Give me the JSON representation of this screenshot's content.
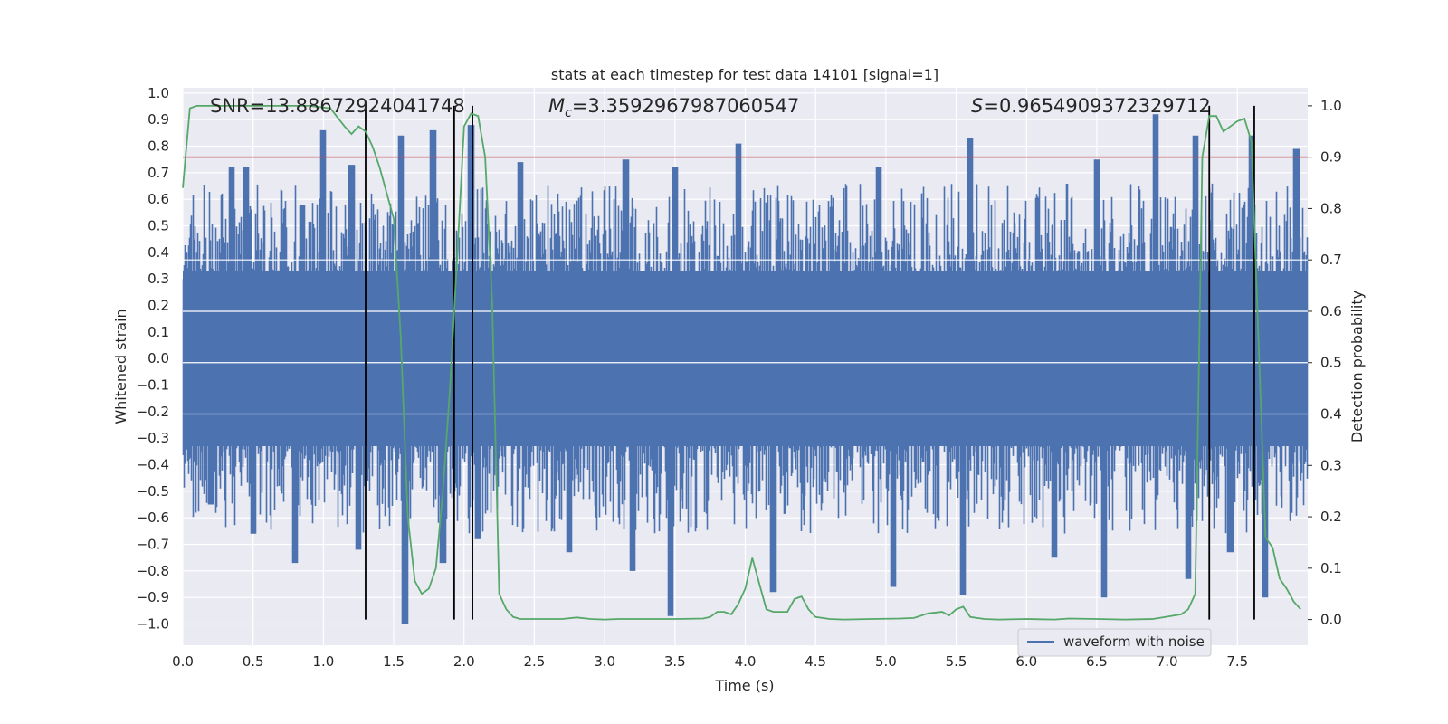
{
  "chart_data": {
    "type": "line",
    "title": "stats at each timestep for test data 14101 [signal=1]",
    "xlabel": "Time (s)",
    "ylabel_left": "Whitened strain",
    "ylabel_right": "Detection probability",
    "xlim": [
      0,
      8
    ],
    "ylim_left": [
      -1.08,
      1.02
    ],
    "ylim_right": [
      -0.05,
      1.035
    ],
    "x_ticks": [
      "0.0",
      "0.5",
      "1.0",
      "1.5",
      "2.0",
      "2.5",
      "3.0",
      "3.5",
      "4.0",
      "4.5",
      "5.0",
      "5.5",
      "6.0",
      "6.5",
      "7.0",
      "7.5"
    ],
    "y_ticks_left": [
      "1.0",
      "0.9",
      "0.8",
      "0.7",
      "0.6",
      "0.5",
      "0.4",
      "0.3",
      "0.2",
      "0.1",
      "0.0",
      "−0.1",
      "−0.2",
      "−0.3",
      "−0.4",
      "−0.5",
      "−0.6",
      "−0.7",
      "−0.8",
      "−0.9",
      "−1.0"
    ],
    "y_ticks_right": [
      "1.0",
      "0.9",
      "0.8",
      "0.7",
      "0.6",
      "0.5",
      "0.4",
      "0.3",
      "0.2",
      "0.1",
      "0.0"
    ],
    "grid": true,
    "legend": {
      "position": "lower-right",
      "entries": [
        "waveform with noise"
      ]
    },
    "annotations": {
      "snr": "SNR=13.88672924041748",
      "mc_symbol": "M",
      "mc_sub": "c",
      "mc_value": "=3.3592967987060547",
      "s_symbol": "S",
      "s_value": "=0.9654909372329712"
    },
    "series": [
      {
        "name": "waveform with noise",
        "axis": "left",
        "color": "#4c72b0",
        "envelope": {
          "upper_typical": 0.45,
          "lower_typical": -0.45
        },
        "peaks": [
          [
            0.35,
            0.72
          ],
          [
            0.45,
            0.72
          ],
          [
            0.85,
            0.58
          ],
          [
            1.0,
            0.86
          ],
          [
            1.2,
            0.73
          ],
          [
            1.55,
            0.84
          ],
          [
            1.78,
            0.86
          ],
          [
            2.05,
            0.88
          ],
          [
            2.4,
            0.74
          ],
          [
            3.15,
            0.75
          ],
          [
            3.5,
            0.72
          ],
          [
            3.95,
            0.81
          ],
          [
            4.95,
            0.72
          ],
          [
            5.6,
            0.83
          ],
          [
            6.5,
            0.75
          ],
          [
            6.92,
            0.92
          ],
          [
            7.2,
            0.84
          ],
          [
            7.6,
            0.84
          ],
          [
            7.92,
            0.79
          ]
        ],
        "troughs": [
          [
            0.2,
            -0.55
          ],
          [
            0.5,
            -0.66
          ],
          [
            0.8,
            -0.77
          ],
          [
            1.25,
            -0.72
          ],
          [
            1.58,
            -1.0
          ],
          [
            1.85,
            -0.77
          ],
          [
            2.1,
            -0.68
          ],
          [
            2.75,
            -0.73
          ],
          [
            3.2,
            -0.8
          ],
          [
            3.47,
            -0.97
          ],
          [
            4.2,
            -0.88
          ],
          [
            5.05,
            -0.86
          ],
          [
            5.55,
            -0.89
          ],
          [
            6.2,
            -0.75
          ],
          [
            6.55,
            -0.9
          ],
          [
            7.15,
            -0.83
          ],
          [
            7.45,
            -0.73
          ],
          [
            7.7,
            -0.9
          ]
        ]
      },
      {
        "name": "detection probability",
        "axis": "right",
        "color": "#55a868",
        "x": [
          0.0,
          0.05,
          0.1,
          0.2,
          0.3,
          0.5,
          0.7,
          0.9,
          1.05,
          1.15,
          1.2,
          1.25,
          1.3,
          1.35,
          1.4,
          1.5,
          1.55,
          1.6,
          1.65,
          1.7,
          1.75,
          1.8,
          1.85,
          1.9,
          1.95,
          2.0,
          2.05,
          2.1,
          2.15,
          2.2,
          2.25,
          2.3,
          2.35,
          2.4,
          2.5,
          2.7,
          2.8,
          2.9,
          3.0,
          3.1,
          3.3,
          3.5,
          3.7,
          3.75,
          3.8,
          3.85,
          3.9,
          3.95,
          4.0,
          4.05,
          4.1,
          4.15,
          4.2,
          4.3,
          4.35,
          4.4,
          4.45,
          4.5,
          4.6,
          4.7,
          4.9,
          5.1,
          5.2,
          5.3,
          5.4,
          5.45,
          5.5,
          5.55,
          5.6,
          5.7,
          5.8,
          6.0,
          6.2,
          6.3,
          6.5,
          6.7,
          6.9,
          7.1,
          7.15,
          7.2,
          7.25,
          7.3,
          7.35,
          7.4,
          7.5,
          7.55,
          7.6,
          7.7,
          7.75,
          7.8,
          7.85,
          7.9,
          7.95
        ],
        "y": [
          0.84,
          0.995,
          1.0,
          1.0,
          1.0,
          1.0,
          1.0,
          1.0,
          0.995,
          0.96,
          0.945,
          0.96,
          0.95,
          0.92,
          0.88,
          0.78,
          0.55,
          0.2,
          0.075,
          0.05,
          0.06,
          0.1,
          0.25,
          0.45,
          0.7,
          0.96,
          0.985,
          0.98,
          0.9,
          0.62,
          0.05,
          0.02,
          0.005,
          0.001,
          0.001,
          0.001,
          0.004,
          0.001,
          0.0,
          0.001,
          0.001,
          0.001,
          0.002,
          0.005,
          0.015,
          0.015,
          0.01,
          0.03,
          0.06,
          0.12,
          0.07,
          0.02,
          0.015,
          0.015,
          0.04,
          0.045,
          0.02,
          0.005,
          0.001,
          0.0,
          0.001,
          0.002,
          0.003,
          0.012,
          0.015,
          0.008,
          0.02,
          0.025,
          0.005,
          0.001,
          0.0,
          0.001,
          0.0,
          0.002,
          0.001,
          0.0,
          0.001,
          0.01,
          0.02,
          0.05,
          0.9,
          0.98,
          0.98,
          0.95,
          0.97,
          0.975,
          0.93,
          0.16,
          0.14,
          0.08,
          0.06,
          0.035,
          0.02
        ]
      }
    ],
    "threshold": {
      "axis": "right",
      "value": 0.9,
      "color": "#c44e52"
    },
    "vlines": [
      1.3,
      1.93,
      2.06,
      7.3,
      7.62
    ]
  }
}
